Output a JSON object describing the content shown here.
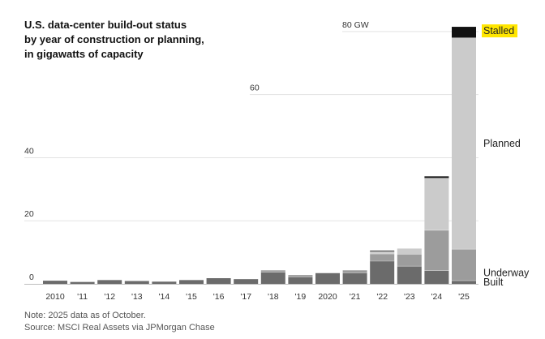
{
  "chart_data": {
    "type": "bar",
    "stacked": true,
    "title": [
      "U.S. data-center build-out status",
      "by year of construction or planning,",
      "in gigawatts of capacity"
    ],
    "categories": [
      "2010",
      "'11",
      "'12",
      "'13",
      "'14",
      "'15",
      "'16",
      "'17",
      "'18",
      "'19",
      "2020",
      "'21",
      "'22",
      "'23",
      "'24",
      "'25"
    ],
    "series": [
      {
        "name": "Built",
        "color": "#6b6b6b",
        "values": [
          1.0,
          0.6,
          1.2,
          0.9,
          0.7,
          1.2,
          1.8,
          1.5,
          3.7,
          2.2,
          3.4,
          3.5,
          7.2,
          5.6,
          4.2,
          1.0
        ]
      },
      {
        "name": "Underway",
        "color": "#9c9c9c",
        "values": [
          0,
          0,
          0,
          0,
          0,
          0,
          0,
          0,
          0.6,
          0.6,
          0,
          0.8,
          2.3,
          3.8,
          12.8,
          10.0
        ]
      },
      {
        "name": "Planned",
        "color": "#cbcbcb",
        "values": [
          0,
          0,
          0,
          0,
          0,
          0,
          0,
          0,
          0,
          0,
          0,
          0,
          0.7,
          1.8,
          16.5,
          67.0
        ]
      },
      {
        "name": "Stalled",
        "color": "#111111",
        "values": [
          0,
          0,
          0,
          0,
          0,
          0,
          0,
          0,
          0,
          0,
          0,
          0,
          0.3,
          0,
          0.6,
          3.5
        ]
      }
    ],
    "y_ticks": [
      {
        "value": 0,
        "label": "0"
      },
      {
        "value": 20,
        "label": "20"
      },
      {
        "value": 40,
        "label": "40"
      },
      {
        "value": 60,
        "label": "60"
      },
      {
        "value": 80,
        "label": "80 GW"
      }
    ],
    "ylim": [
      0,
      81
    ],
    "legend": [
      "Stalled",
      "Planned",
      "Underway",
      "Built"
    ],
    "legend_placement": "right, aligned to last bar",
    "highlight_color": "#ffe600",
    "note": "Note: 2025 data as of October.",
    "source": "Source: MSCI Real Assets via JPMorgan Chase"
  }
}
